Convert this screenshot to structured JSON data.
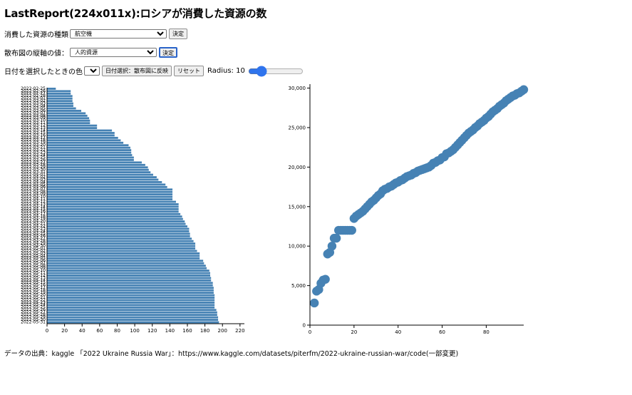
{
  "page": {
    "title": "LastReport(224x011x):ロシアが消費した資源の数",
    "resource_label": "消費した資源の種類",
    "resource_value": "航空機",
    "resource_submit": "決定",
    "axis_label": "散布図の縦軸の値：",
    "axis_value": "人的資源",
    "axis_submit": "決定",
    "date_color_label": "日付を選択したときの色",
    "date_color_value": "赤",
    "apply_button": "日付選択：散布図に反映",
    "reset_button": "リセット",
    "radius_text": "Radius: 10",
    "radius_value": 10,
    "footer": "データの出典：kaggle 「2022 Ukraine Russia War」：https://www.kaggle.com/datasets/piterfm/2022-ukraine-russian-war/code(一部変更)"
  },
  "colors": {
    "accent": "#4682b4",
    "focus": "#2a63c9",
    "slider": "#2f74ed"
  },
  "chart_data": [
    {
      "type": "bar",
      "orientation": "horizontal",
      "categories": [
        "2022-02-25",
        "2022-02-26",
        "2022-02-27",
        "2022-02-28",
        "2022-03-01",
        "2022-03-02",
        "2022-03-03",
        "2022-03-04",
        "2022-03-05",
        "2022-03-06",
        "2022-03-07",
        "2022-03-08",
        "2022-03-09",
        "2022-03-10",
        "2022-03-11",
        "2022-03-12",
        "2022-03-13",
        "2022-03-14",
        "2022-03-15",
        "2022-03-16",
        "2022-03-17",
        "2022-03-18",
        "2022-03-19",
        "2022-03-20",
        "2022-03-21",
        "2022-03-22",
        "2022-03-23",
        "2022-03-24",
        "2022-03-25",
        "2022-03-26",
        "2022-03-27",
        "2022-03-28",
        "2022-03-29",
        "2022-03-30",
        "2022-03-31",
        "2022-04-01",
        "2022-04-02",
        "2022-04-03",
        "2022-04-04",
        "2022-04-05",
        "2022-04-06",
        "2022-04-07",
        "2022-04-08",
        "2022-04-09",
        "2022-04-10",
        "2022-04-11",
        "2022-04-12",
        "2022-04-13",
        "2022-04-14",
        "2022-04-15",
        "2022-04-16",
        "2022-04-17",
        "2022-04-18",
        "2022-04-19",
        "2022-04-20",
        "2022-04-21",
        "2022-04-22",
        "2022-04-23",
        "2022-04-24",
        "2022-04-25",
        "2022-04-26",
        "2022-04-27",
        "2022-04-28",
        "2022-04-29",
        "2022-04-30",
        "2022-05-01",
        "2022-05-02",
        "2022-05-03",
        "2022-05-04",
        "2022-05-05",
        "2022-05-06",
        "2022-05-07",
        "2022-05-08",
        "2022-05-09",
        "2022-05-10",
        "2022-05-11",
        "2022-05-12",
        "2022-05-13",
        "2022-05-14",
        "2022-05-15",
        "2022-05-16",
        "2022-05-17",
        "2022-05-18",
        "2022-05-19",
        "2022-05-20",
        "2022-05-21",
        "2022-05-22",
        "2022-05-23",
        "2022-05-24",
        "2022-05-25",
        "2022-05-26",
        "2022-05-27",
        "2022-05-28",
        "2022-05-29",
        "2022-05-30",
        "2022-05-31"
      ],
      "values": [
        10,
        27,
        27,
        29,
        29,
        29,
        30,
        30,
        33,
        39,
        44,
        46,
        48,
        49,
        49,
        57,
        57,
        74,
        77,
        77,
        81,
        84,
        87,
        93,
        95,
        96,
        96,
        97,
        99,
        99,
        108,
        112,
        115,
        116,
        118,
        121,
        125,
        127,
        131,
        135,
        137,
        143,
        143,
        143,
        143,
        143,
        147,
        150,
        150,
        150,
        150,
        152,
        154,
        155,
        157,
        158,
        160,
        162,
        162,
        163,
        163,
        165,
        167,
        169,
        169,
        169,
        171,
        174,
        174,
        174,
        178,
        179,
        181,
        182,
        185,
        186,
        186,
        187,
        187,
        189,
        189,
        190,
        190,
        190,
        191,
        191,
        191,
        191,
        191,
        191,
        193,
        194,
        194,
        195,
        195,
        196
      ],
      "xticks": [
        0,
        20,
        40,
        60,
        80,
        100,
        120,
        140,
        160,
        180,
        200,
        220
      ],
      "xlim": [
        0,
        225
      ],
      "xlabel": "",
      "ylabel": "",
      "title": "",
      "grid": false
    },
    {
      "type": "scatter",
      "x": [
        2,
        3,
        4,
        5,
        6,
        7,
        8,
        9,
        10,
        11,
        12,
        13,
        14,
        15,
        16,
        17,
        18,
        19,
        20,
        21,
        22,
        23,
        24,
        25,
        26,
        27,
        28,
        29,
        30,
        31,
        32,
        33,
        34,
        35,
        36,
        37,
        38,
        39,
        40,
        41,
        42,
        43,
        44,
        45,
        46,
        47,
        48,
        49,
        50,
        51,
        52,
        53,
        54,
        55,
        56,
        57,
        58,
        59,
        60,
        61,
        62,
        63,
        64,
        65,
        66,
        67,
        68,
        69,
        70,
        71,
        72,
        73,
        74,
        75,
        76,
        77,
        78,
        79,
        80,
        81,
        82,
        83,
        84,
        85,
        86,
        87,
        88,
        89,
        90,
        91,
        92,
        93,
        94,
        95,
        96,
        97
      ],
      "y": [
        2800,
        4300,
        4500,
        5300,
        5700,
        5800,
        9000,
        9200,
        10000,
        11000,
        11000,
        12000,
        12000,
        12000,
        12000,
        12000,
        12000,
        12000,
        13500,
        13800,
        14000,
        14200,
        14400,
        14700,
        15000,
        15300,
        15600,
        15800,
        16100,
        16400,
        16600,
        17000,
        17200,
        17300,
        17500,
        17600,
        17800,
        18000,
        18100,
        18300,
        18400,
        18600,
        18800,
        18900,
        19000,
        19200,
        19300,
        19500,
        19600,
        19700,
        19800,
        19900,
        20000,
        20200,
        20500,
        20600,
        20800,
        20900,
        21200,
        21300,
        21700,
        21800,
        22000,
        22200,
        22500,
        22800,
        23100,
        23400,
        23700,
        24000,
        24300,
        24500,
        24700,
        25000,
        25200,
        25500,
        25700,
        25900,
        26200,
        26400,
        26700,
        27000,
        27200,
        27400,
        27700,
        27900,
        28100,
        28400,
        28600,
        28800,
        29000,
        29100,
        29300,
        29400,
        29600,
        29800
      ],
      "xticks": [
        0,
        20,
        40,
        60,
        80
      ],
      "yticks": [
        0,
        5000,
        10000,
        15000,
        20000,
        25000,
        30000
      ],
      "ytick_labels": [
        "0",
        "5,000",
        "10,000",
        "15,000",
        "20,000",
        "25,000",
        "30,000"
      ],
      "xlim": [
        0,
        97
      ],
      "ylim": [
        0,
        30500
      ],
      "xlabel": "",
      "ylabel": "",
      "title": "",
      "grid": false
    }
  ]
}
